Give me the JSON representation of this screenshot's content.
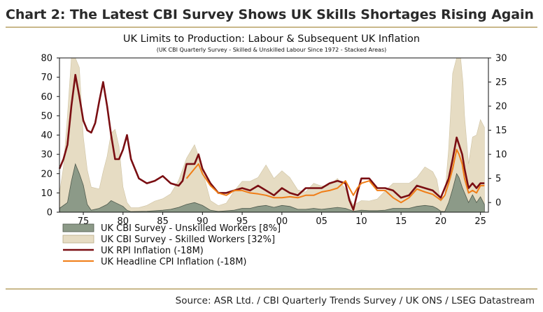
{
  "header": {
    "title": "Chart 2: The Latest CBI Survey Shows UK Skills Shortages Rising Again"
  },
  "footer": {
    "source": "Source: ASR Ltd. / CBI Quarterly Trends Survey / UK ONS / LSEG Datastream"
  },
  "chart_data": {
    "type": "area",
    "title": "UK Limits to Production: Labour & Subsequent UK Inflation",
    "subtitle": "(UK CBI Quarterly Survey - Skilled & Unskilled Labour Since 1972 - Stacked Areas)",
    "x_range": [
      1972,
      2026
    ],
    "x_ticks": [
      "75",
      "80",
      "85",
      "90",
      "95",
      "00",
      "05",
      "10",
      "15",
      "20",
      "25"
    ],
    "y_left": {
      "range": [
        0,
        80
      ],
      "ticks": [
        0,
        10,
        20,
        30,
        40,
        50,
        60,
        70,
        80
      ]
    },
    "y_right": {
      "range": [
        -2,
        30
      ],
      "ticks": [
        0,
        5,
        10,
        15,
        20,
        25,
        30
      ]
    },
    "legend": {
      "position": "bottom-left"
    },
    "colors": {
      "unskilled": "#8c9a88",
      "skilled": "#e6dcc3",
      "rpi": "#7a0e12",
      "cpi": "#f07d16"
    },
    "series": [
      {
        "name": "UK CBI Survey - Unskilled Workers [8%]",
        "axis": "left",
        "kind": "area",
        "points": [
          [
            1972,
            2
          ],
          [
            1973,
            5
          ],
          [
            1973.5,
            16
          ],
          [
            1974,
            25
          ],
          [
            1974.5,
            20
          ],
          [
            1975,
            14
          ],
          [
            1975.5,
            4
          ],
          [
            1976,
            1
          ],
          [
            1977,
            2
          ],
          [
            1978,
            4
          ],
          [
            1978.5,
            6
          ],
          [
            1979,
            5
          ],
          [
            1980,
            3
          ],
          [
            1980.5,
            1
          ],
          [
            1981,
            0.3
          ],
          [
            1983,
            0.5
          ],
          [
            1985,
            1
          ],
          [
            1986,
            1.5
          ],
          [
            1987,
            2.5
          ],
          [
            1988,
            4
          ],
          [
            1989,
            5
          ],
          [
            1990,
            3.5
          ],
          [
            1991,
            1
          ],
          [
            1992,
            0.4
          ],
          [
            1994,
            1
          ],
          [
            1995,
            2
          ],
          [
            1996,
            2
          ],
          [
            1997,
            3
          ],
          [
            1998,
            3.5
          ],
          [
            1999,
            2.5
          ],
          [
            2000,
            3.5
          ],
          [
            2001,
            3
          ],
          [
            2002,
            1.5
          ],
          [
            2003,
            1.5
          ],
          [
            2004,
            2
          ],
          [
            2005,
            1.5
          ],
          [
            2006,
            2
          ],
          [
            2007,
            2.5
          ],
          [
            2008,
            2
          ],
          [
            2009,
            0.5
          ],
          [
            2010,
            1
          ],
          [
            2011,
            0.8
          ],
          [
            2012,
            0.8
          ],
          [
            2013,
            1
          ],
          [
            2014,
            2
          ],
          [
            2015,
            2
          ],
          [
            2016,
            2
          ],
          [
            2017,
            3
          ],
          [
            2018,
            3.5
          ],
          [
            2019,
            3
          ],
          [
            2019.5,
            2
          ],
          [
            2020,
            0.5
          ],
          [
            2020.5,
            0.3
          ],
          [
            2021,
            5
          ],
          [
            2021.5,
            12
          ],
          [
            2022,
            20
          ],
          [
            2022.3,
            18
          ],
          [
            2022.7,
            13
          ],
          [
            2023,
            10
          ],
          [
            2023.5,
            5
          ],
          [
            2024,
            9
          ],
          [
            2024.5,
            5
          ],
          [
            2025,
            8
          ],
          [
            2025.5,
            4
          ]
        ]
      },
      {
        "name": "UK CBI Survey - Skilled Workers [32%]",
        "axis": "left",
        "kind": "area",
        "points": [
          [
            1972,
            8
          ],
          [
            1972.5,
            20
          ],
          [
            1973,
            45
          ],
          [
            1973.5,
            65
          ],
          [
            1974,
            78
          ],
          [
            1974.5,
            55
          ],
          [
            1975,
            25
          ],
          [
            1975.5,
            18
          ],
          [
            1976,
            12
          ],
          [
            1977,
            10
          ],
          [
            1977.5,
            18
          ],
          [
            1978,
            25
          ],
          [
            1978.5,
            35
          ],
          [
            1979,
            38
          ],
          [
            1979.5,
            30
          ],
          [
            1980,
            10
          ],
          [
            1980.5,
            4
          ],
          [
            1981,
            2
          ],
          [
            1982,
            2
          ],
          [
            1983,
            3
          ],
          [
            1984,
            5
          ],
          [
            1985,
            6
          ],
          [
            1986,
            8
          ],
          [
            1987,
            14
          ],
          [
            1988,
            24
          ],
          [
            1989,
            30
          ],
          [
            1989.5,
            25
          ],
          [
            1990,
            18
          ],
          [
            1991,
            5
          ],
          [
            1992,
            3
          ],
          [
            1993,
            4
          ],
          [
            1994,
            10
          ],
          [
            1995,
            14
          ],
          [
            1996,
            14
          ],
          [
            1997,
            15
          ],
          [
            1998,
            21
          ],
          [
            1999,
            15
          ],
          [
            2000,
            18
          ],
          [
            2001,
            15
          ],
          [
            2002,
            10
          ],
          [
            2003,
            9
          ],
          [
            2004,
            13
          ],
          [
            2005,
            12
          ],
          [
            2006,
            12
          ],
          [
            2007,
            15
          ],
          [
            2008,
            10
          ],
          [
            2009,
            3
          ],
          [
            2010,
            5
          ],
          [
            2011,
            5
          ],
          [
            2012,
            6
          ],
          [
            2013,
            10
          ],
          [
            2014,
            13
          ],
          [
            2015,
            13
          ],
          [
            2016,
            13
          ],
          [
            2017,
            15
          ],
          [
            2018,
            20
          ],
          [
            2019,
            18
          ],
          [
            2019.5,
            15
          ],
          [
            2020,
            5
          ],
          [
            2020.5,
            8
          ],
          [
            2021,
            28
          ],
          [
            2021.5,
            60
          ],
          [
            2022,
            72
          ],
          [
            2022.5,
            75
          ],
          [
            2022.8,
            55
          ],
          [
            2023,
            40
          ],
          [
            2023.5,
            20
          ],
          [
            2024,
            30
          ],
          [
            2024.5,
            35
          ],
          [
            2025,
            40
          ],
          [
            2025.5,
            40
          ]
        ]
      },
      {
        "name": "UK RPI  Inflation (-18M)",
        "axis": "right",
        "kind": "line",
        "points": [
          [
            1972,
            7
          ],
          [
            1972.5,
            9
          ],
          [
            1973,
            12
          ],
          [
            1973.5,
            20
          ],
          [
            1974,
            26.5
          ],
          [
            1974.5,
            22
          ],
          [
            1975,
            17
          ],
          [
            1975.5,
            15
          ],
          [
            1976,
            14.5
          ],
          [
            1976.5,
            16.5
          ],
          [
            1977,
            21
          ],
          [
            1977.5,
            25
          ],
          [
            1978,
            20
          ],
          [
            1978.5,
            14
          ],
          [
            1979,
            9
          ],
          [
            1979.5,
            9
          ],
          [
            1980,
            11
          ],
          [
            1980.5,
            14
          ],
          [
            1981,
            9
          ],
          [
            1981.5,
            7
          ],
          [
            1982,
            5
          ],
          [
            1983,
            4
          ],
          [
            1984,
            4.5
          ],
          [
            1985,
            5.5
          ],
          [
            1986,
            4
          ],
          [
            1987,
            3.5
          ],
          [
            1987.5,
            4.5
          ],
          [
            1988,
            8
          ],
          [
            1989,
            8
          ],
          [
            1989.5,
            10
          ],
          [
            1990,
            7
          ],
          [
            1991,
            4
          ],
          [
            1992,
            2
          ],
          [
            1993,
            2
          ],
          [
            1994,
            2.5
          ],
          [
            1995,
            3
          ],
          [
            1996,
            2.5
          ],
          [
            1997,
            3.5
          ],
          [
            1998,
            2.5
          ],
          [
            1999,
            1.5
          ],
          [
            2000,
            3
          ],
          [
            2001,
            2
          ],
          [
            2002,
            1.5
          ],
          [
            2003,
            3
          ],
          [
            2004,
            3
          ],
          [
            2005,
            3
          ],
          [
            2006,
            4
          ],
          [
            2007,
            4.5
          ],
          [
            2008,
            4
          ],
          [
            2008.5,
            0.5
          ],
          [
            2009,
            -1.5
          ],
          [
            2009.5,
            2
          ],
          [
            2010,
            5
          ],
          [
            2011,
            5
          ],
          [
            2012,
            3
          ],
          [
            2013,
            3
          ],
          [
            2014,
            2.5
          ],
          [
            2015,
            1
          ],
          [
            2016,
            1.5
          ],
          [
            2017,
            3.5
          ],
          [
            2018,
            3
          ],
          [
            2019,
            2.5
          ],
          [
            2020,
            1
          ],
          [
            2020.5,
            3
          ],
          [
            2021,
            5
          ],
          [
            2021.5,
            9
          ],
          [
            2022,
            13.5
          ],
          [
            2022.3,
            12
          ],
          [
            2022.7,
            10
          ],
          [
            2023,
            7
          ],
          [
            2023.5,
            3
          ],
          [
            2024,
            4
          ],
          [
            2024.5,
            3
          ],
          [
            2025,
            4
          ],
          [
            2025.5,
            4
          ]
        ]
      },
      {
        "name": "UK Headline CPI  Inflation (-18M)",
        "axis": "right",
        "kind": "line",
        "points": [
          [
            1988,
            5
          ],
          [
            1989,
            7
          ],
          [
            1989.5,
            8
          ],
          [
            1990,
            6
          ],
          [
            1991,
            3.5
          ],
          [
            1992,
            2
          ],
          [
            1993,
            1.5
          ],
          [
            1994,
            2.5
          ],
          [
            1995,
            2.5
          ],
          [
            1996,
            2
          ],
          [
            1997,
            1.8
          ],
          [
            1998,
            1.5
          ],
          [
            1999,
            1
          ],
          [
            2000,
            1
          ],
          [
            2001,
            1.2
          ],
          [
            2002,
            1
          ],
          [
            2003,
            1.5
          ],
          [
            2004,
            1.5
          ],
          [
            2005,
            2.2
          ],
          [
            2006,
            2.5
          ],
          [
            2007,
            3
          ],
          [
            2008,
            4.5
          ],
          [
            2008.5,
            3
          ],
          [
            2009,
            1.5
          ],
          [
            2009.5,
            3
          ],
          [
            2010,
            4
          ],
          [
            2011,
            4.5
          ],
          [
            2012,
            2.5
          ],
          [
            2013,
            2.5
          ],
          [
            2014,
            1
          ],
          [
            2015,
            0
          ],
          [
            2016,
            1
          ],
          [
            2017,
            2.8
          ],
          [
            2018,
            2.2
          ],
          [
            2019,
            1.7
          ],
          [
            2020,
            0.5
          ],
          [
            2020.5,
            1.5
          ],
          [
            2021,
            4
          ],
          [
            2021.5,
            7
          ],
          [
            2022,
            11
          ],
          [
            2022.3,
            10
          ],
          [
            2022.7,
            8
          ],
          [
            2023,
            5
          ],
          [
            2023.5,
            2
          ],
          [
            2024,
            2.5
          ],
          [
            2024.5,
            2
          ],
          [
            2025,
            3.5
          ],
          [
            2025.5,
            3.5
          ]
        ]
      }
    ]
  }
}
